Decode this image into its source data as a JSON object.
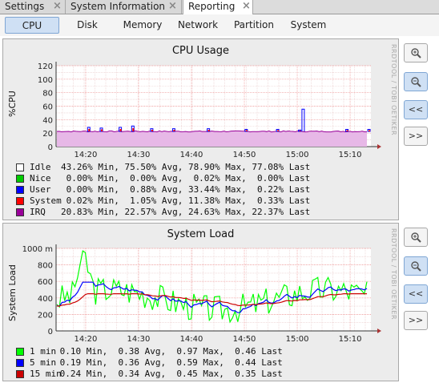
{
  "tabs": [
    {
      "label": "Settings",
      "active": false
    },
    {
      "label": "System Information",
      "active": false
    },
    {
      "label": "Reporting",
      "active": true
    }
  ],
  "subtabs": [
    {
      "label": "CPU",
      "active": true
    },
    {
      "label": "Disk",
      "active": false
    },
    {
      "label": "Memory",
      "active": false
    },
    {
      "label": "Network",
      "active": false
    },
    {
      "label": "Partition",
      "active": false
    },
    {
      "label": "System",
      "active": false
    }
  ],
  "side_buttons": {
    "zoom_in": "+",
    "zoom_out": "-",
    "back": "<<",
    "forward": ">>"
  },
  "watermark": "RRDTOOL / TOBI OETIKER",
  "chart_data": [
    {
      "type": "area",
      "title": "CPU Usage",
      "ylabel": "%CPU",
      "ylim": [
        0,
        120
      ],
      "yticks": [
        "0",
        "20",
        "40",
        "60",
        "80",
        "100",
        "120"
      ],
      "xticks": [
        "14:20",
        "14:30",
        "14:40",
        "14:50",
        "15:00",
        "15:10"
      ],
      "legend_header": "",
      "series": [
        {
          "name": "Idle",
          "color": "#ffffff",
          "min": "43.26%",
          "avg": "75.50%",
          "max": "78.90%",
          "last": "77.08%"
        },
        {
          "name": "Nice",
          "color": "#00cc00",
          "min": "0.00%",
          "avg": "0.00%",
          "max": "0.02%",
          "last": "0.00%"
        },
        {
          "name": "User",
          "color": "#0000ff",
          "min": "0.00%",
          "avg": "0.88%",
          "max": "33.44%",
          "last": "0.22%"
        },
        {
          "name": "System",
          "color": "#ff0000",
          "min": "0.02%",
          "avg": "1.05%",
          "max": "11.38%",
          "last": "0.33%"
        },
        {
          "name": "IRQ",
          "color": "#990099",
          "min": "20.83%",
          "avg": "22.57%",
          "max": "24.63%",
          "last": "22.37%"
        }
      ]
    },
    {
      "type": "line",
      "title": "System Load",
      "ylabel": "System Load",
      "ylim": [
        0,
        1000
      ],
      "yticks": [
        "0",
        "200",
        "400",
        "600",
        "800",
        "1000 m"
      ],
      "xticks": [
        "14:20",
        "14:30",
        "14:40",
        "14:50",
        "15:00",
        "15:10"
      ],
      "series": [
        {
          "name": "1 min",
          "color": "#00ff00",
          "min": "0.10",
          "avg": "0.38",
          "max": "0.97",
          "last": "0.46"
        },
        {
          "name": "5 min",
          "color": "#0000ff",
          "min": "0.19",
          "avg": "0.36",
          "max": "0.59",
          "last": "0.44"
        },
        {
          "name": "15 min",
          "color": "#cc0000",
          "min": "0.24",
          "avg": "0.34",
          "avg_label": "Avg",
          "max": "0.45",
          "last": "0.35"
        }
      ]
    }
  ]
}
